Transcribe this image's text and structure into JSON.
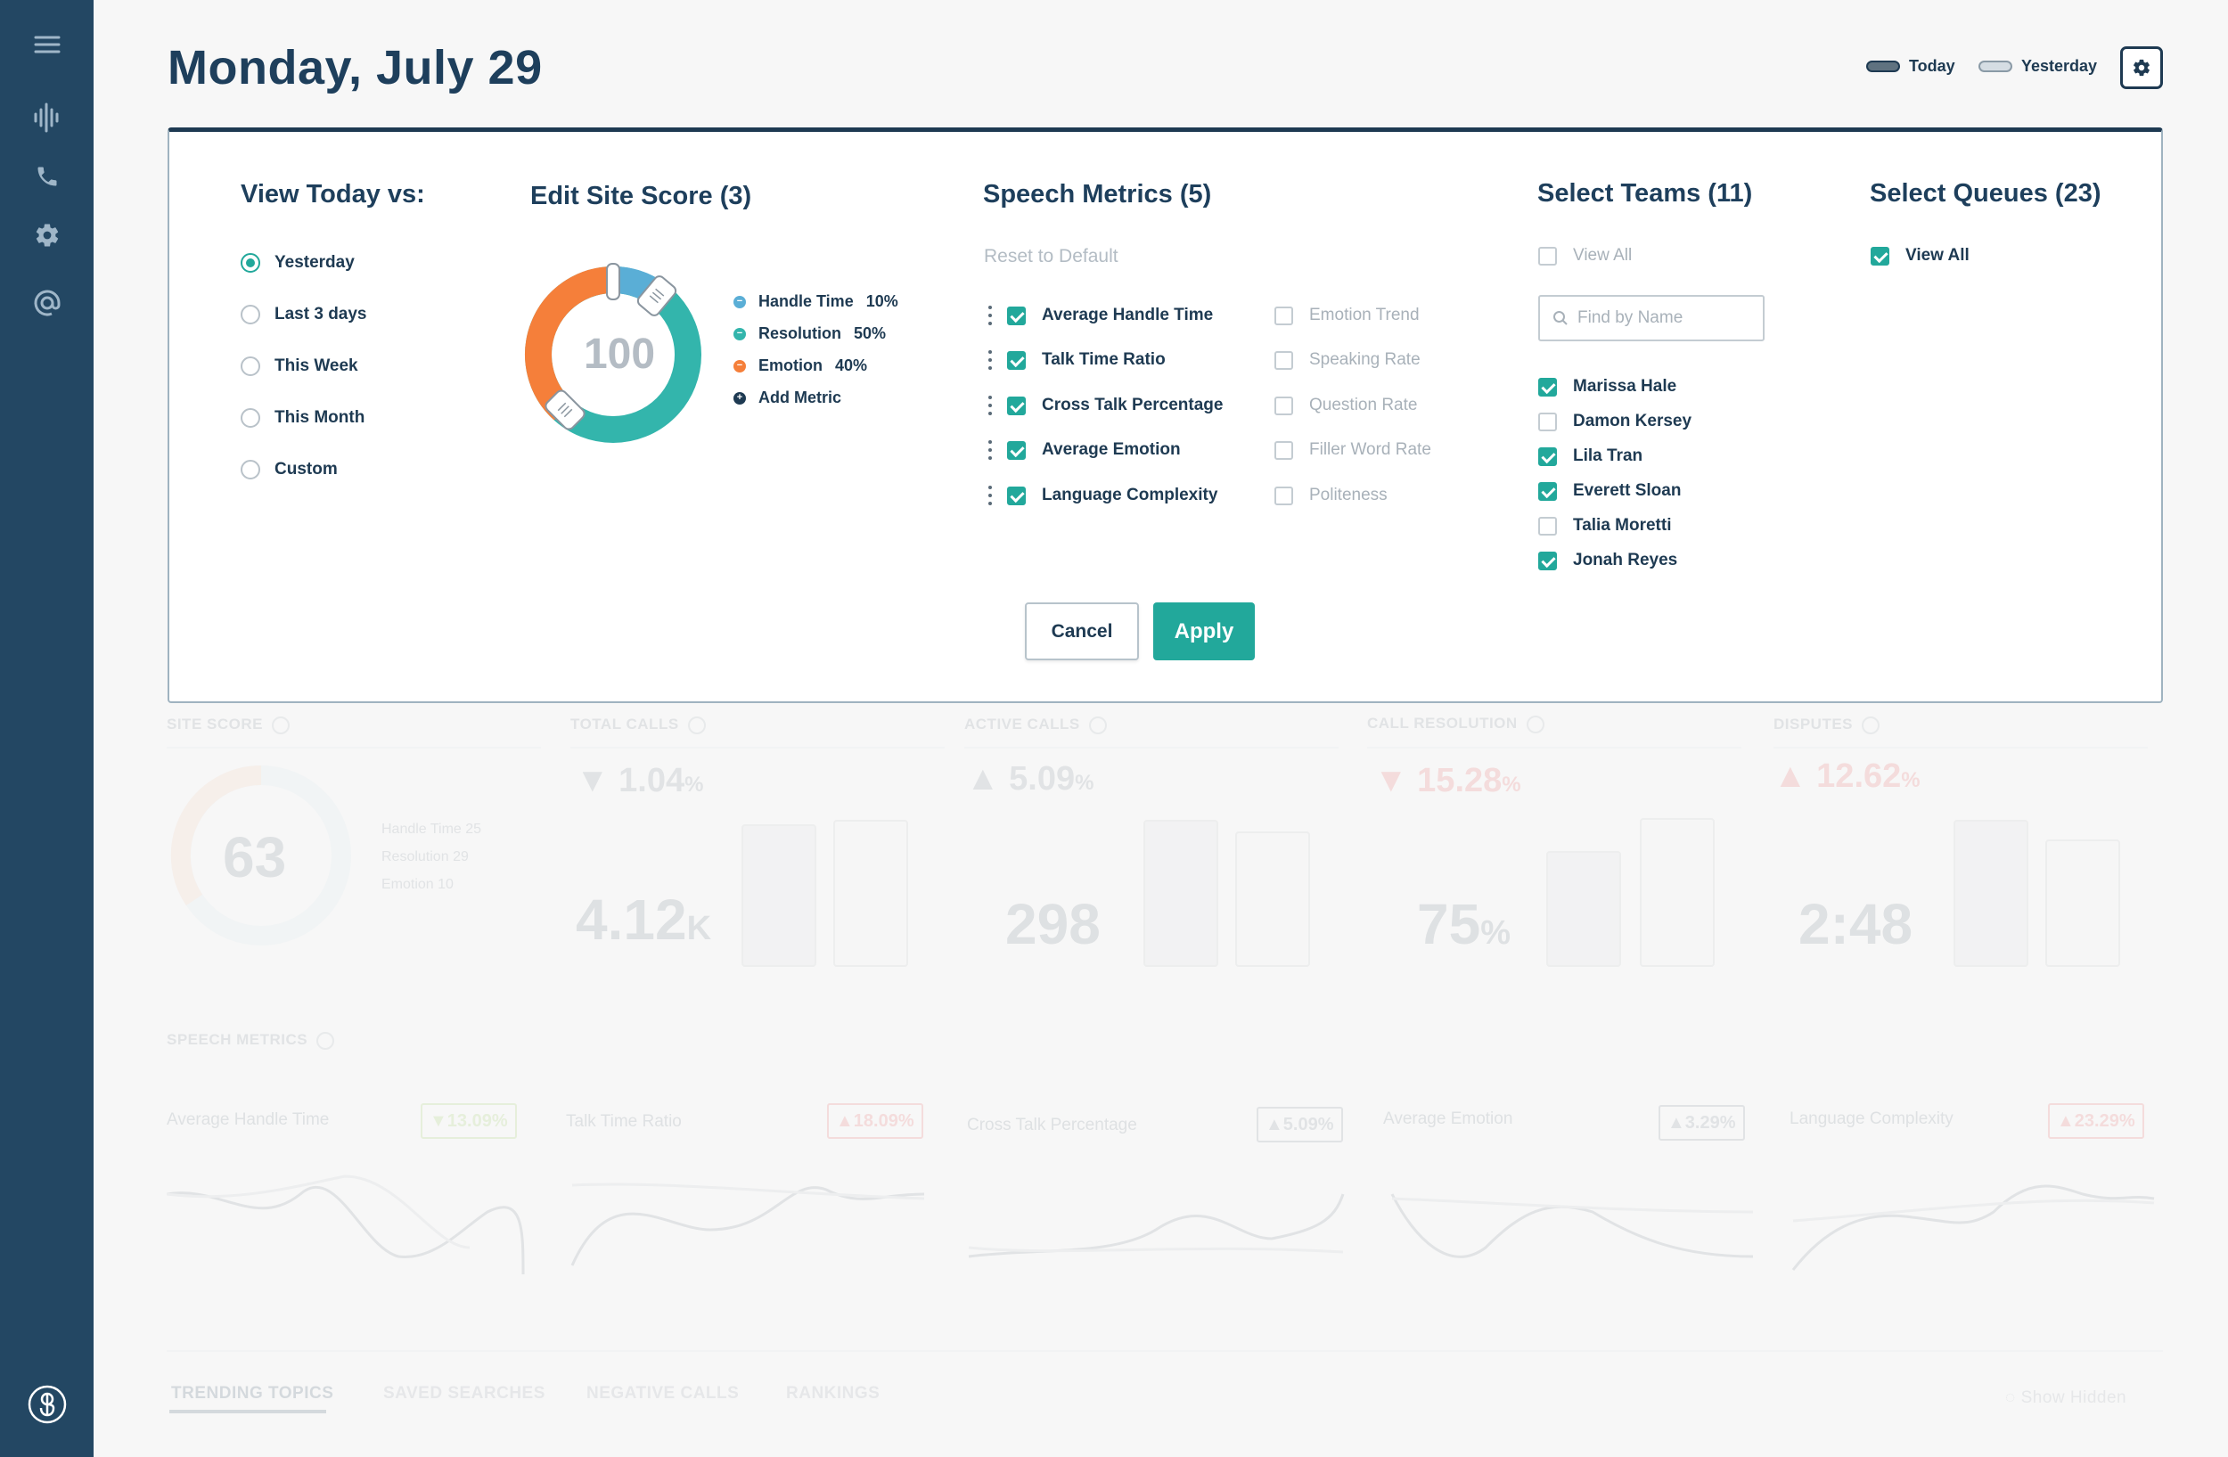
{
  "header": {
    "title": "Monday, July 29",
    "legend_today": "Today",
    "legend_yesterday": "Yesterday"
  },
  "colors": {
    "sidebar": "#234763",
    "accent": "#22a89b",
    "orange": "#f57f3a",
    "blue": "#5aaed6",
    "navy": "#1e3a52"
  },
  "panel": {
    "view_today": {
      "title": "View Today vs:",
      "options": [
        "Yesterday",
        "Last 3 days",
        "This Week",
        "This Month",
        "Custom"
      ],
      "selected": "Yesterday"
    },
    "site_score": {
      "title": "Edit Site Score (3)",
      "score": "100",
      "metrics": [
        {
          "label": "Handle Time",
          "value": "10%",
          "color": "#5aaed6"
        },
        {
          "label": "Resolution",
          "value": "50%",
          "color": "#33b5ac"
        },
        {
          "label": "Emotion",
          "value": "40%",
          "color": "#f57f3a"
        }
      ],
      "add_metric": "Add Metric"
    },
    "speech_metrics": {
      "title": "Speech Metrics (5)",
      "reset": "Reset to Default",
      "enabled": [
        "Average Handle Time",
        "Talk Time Ratio",
        "Cross Talk Percentage",
        "Average Emotion",
        "Language Complexity"
      ],
      "disabled": [
        "Emotion Trend",
        "Speaking Rate",
        "Question Rate",
        "Filler Word Rate",
        "Politeness"
      ]
    },
    "teams": {
      "title": "Select Teams (11)",
      "view_all": "View All",
      "search_placeholder": "Find by Name",
      "members": [
        {
          "name": "Marissa Hale",
          "checked": true
        },
        {
          "name": "Damon Kersey",
          "checked": false
        },
        {
          "name": "Lila Tran",
          "checked": true
        },
        {
          "name": "Everett Sloan",
          "checked": true
        },
        {
          "name": "Talia Moretti",
          "checked": false
        },
        {
          "name": "Jonah Reyes",
          "checked": true
        }
      ]
    },
    "queues": {
      "title": "Select Queues (23)",
      "view_all": "View All"
    },
    "cancel": "Cancel",
    "apply": "Apply"
  },
  "dashboard": {
    "cards": [
      {
        "label": "SITE SCORE",
        "score": "63",
        "legend": [
          {
            "label": "Handle Time",
            "value": "25"
          },
          {
            "label": "Resolution",
            "value": "29"
          },
          {
            "label": "Emotion",
            "value": "10"
          }
        ]
      },
      {
        "label": "TOTAL CALLS",
        "change": "1.04",
        "unit": "%",
        "direction": "down",
        "value": "4.12",
        "value_unit": "K"
      },
      {
        "label": "ACTIVE CALLS",
        "change": "5.09",
        "unit": "%",
        "direction": "up",
        "value": "298"
      },
      {
        "label": "CALL RESOLUTION",
        "change": "15.28",
        "unit": "%",
        "direction": "down",
        "value": "75",
        "value_unit": "%"
      },
      {
        "label": "DISPUTES",
        "change": "12.62",
        "unit": "%",
        "direction": "up",
        "value": "2:48"
      }
    ],
    "speech_title": "SPEECH METRICS",
    "speech_cards": [
      {
        "label": "Average Handle Time",
        "badge": "13.09%",
        "direction": "down"
      },
      {
        "label": "Talk Time Ratio",
        "badge": "18.09%",
        "direction": "up"
      },
      {
        "label": "Cross Talk Percentage",
        "badge": "5.09%",
        "direction": "up"
      },
      {
        "label": "Average Emotion",
        "badge": "3.29%",
        "direction": "up"
      },
      {
        "label": "Language Complexity",
        "badge": "23.29%",
        "direction": "up"
      }
    ],
    "tabs": [
      "TRENDING TOPICS",
      "SAVED SEARCHES",
      "NEGATIVE CALLS",
      "RANKINGS"
    ],
    "show_hidden": "Show Hidden"
  }
}
